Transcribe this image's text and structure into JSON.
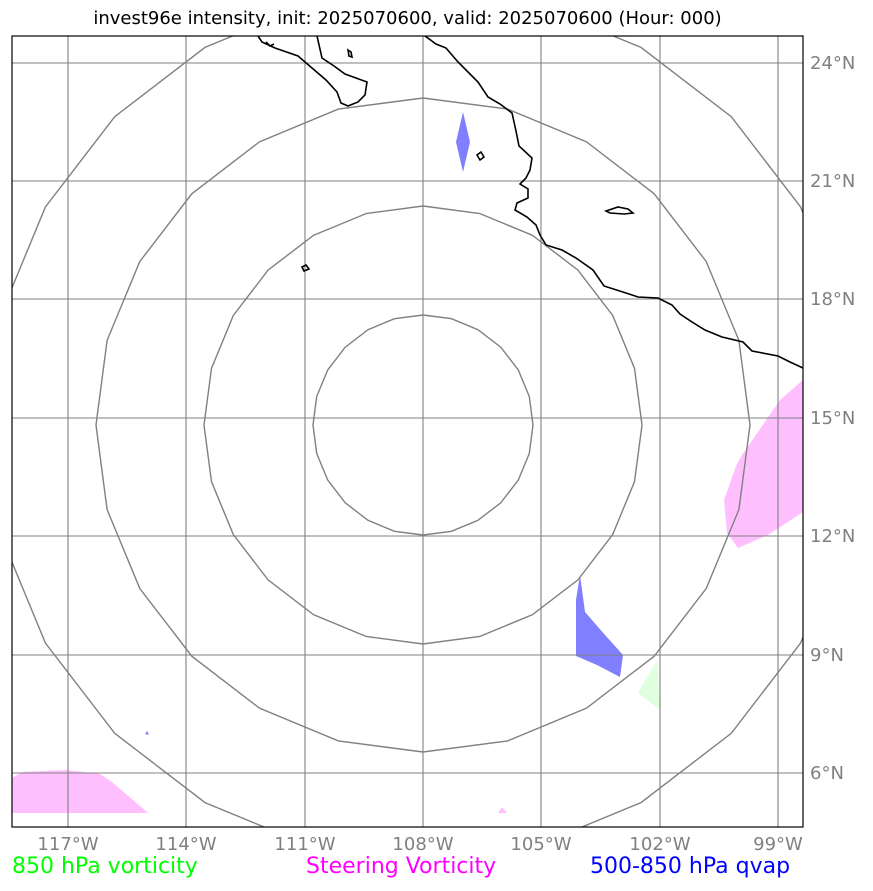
{
  "title": "invest96e intensity, init: 2025070600, valid: 2025070600 (Hour: 000)",
  "axes": {
    "lon_ticks": [
      "117°W",
      "114°W",
      "111°W",
      "108°W",
      "105°W",
      "102°W",
      "99°W"
    ],
    "lat_ticks": [
      "24°N",
      "21°N",
      "18°N",
      "15°N",
      "12°N",
      "9°N",
      "6°N"
    ]
  },
  "legend": {
    "vort850": {
      "label": "850 hPa vorticity",
      "color": "#00ff00"
    },
    "steering": {
      "label": "Steering Vorticity",
      "color": "#ff00ff"
    },
    "qvap": {
      "label": "500-850 hPa qvap",
      "color": "#0000ff"
    }
  },
  "map_extent": {
    "lon": [
      -118.4,
      -98.4
    ],
    "lat": [
      4.8,
      24.9
    ]
  },
  "range_ring_center": {
    "lon": -108.0,
    "lat": 15.0
  },
  "colors": {
    "coast": "#000000",
    "grid": "#808080",
    "ring": "#808080",
    "qvap_fill": "#7f7fff",
    "steering_fill": "#ffbfff",
    "vort_fill": "#dfffdf"
  }
}
